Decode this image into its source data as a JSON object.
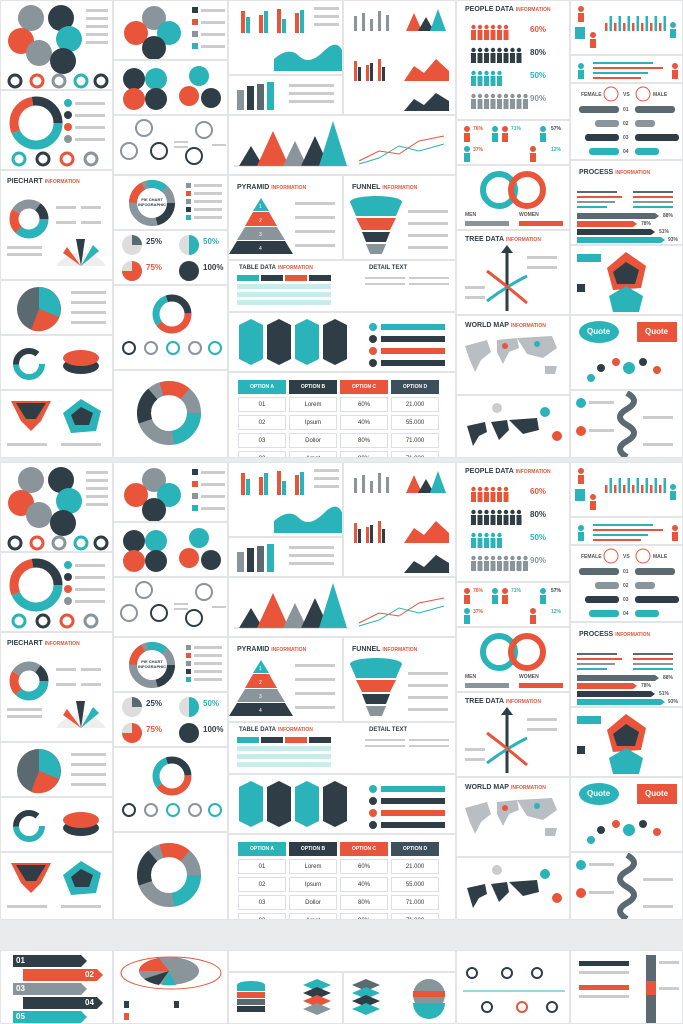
{
  "colors": {
    "teal": "#2ab3b8",
    "orange": "#e8553a",
    "dark": "#2f3e46",
    "gray": "#8a959b",
    "light": "#e6e8e9"
  },
  "titles": {
    "info": "INFORMATION",
    "people": "PEOPLE DATA",
    "piechart": "PIECHART",
    "pyramid": "PYRAMID",
    "funnel": "FUNNEL",
    "table_data": "TABLE DATA",
    "detail": "DETAIL TEXT",
    "tree": "TREE DATA",
    "world": "WORLD MAP",
    "process": "PROCESS",
    "pie_center": "PIE CHART INFOGRAPHIC",
    "quote": "Quote",
    "female": "FEMALE",
    "vs": "VS",
    "male": "MALE",
    "men": "MEN",
    "women": "WOMEN"
  },
  "people_pcts": [
    "60%",
    "80%",
    "50%",
    "90%"
  ],
  "people_small": [
    "76%",
    "71%",
    "57%",
    "37%",
    "12%"
  ],
  "pie_pcts": [
    "25%",
    "50%",
    "75%",
    "100%"
  ],
  "vs_steps": [
    "01",
    "02",
    "03",
    "04"
  ],
  "process_pcts": [
    "88%",
    "78%",
    "51%",
    "93%"
  ],
  "pyramid_steps": [
    "1",
    "2",
    "3",
    "4"
  ],
  "table": {
    "headers": [
      "OPTION A",
      "OPTION B",
      "OPTION C",
      "OPTION D"
    ],
    "rows": [
      [
        "01",
        "Lorem",
        "60%",
        "21.000"
      ],
      [
        "02",
        "Ipsum",
        "40%",
        "55.000"
      ],
      [
        "03",
        "Dollor",
        "80%",
        "71.000"
      ],
      [
        "03",
        "Amet",
        "80%",
        "71.000"
      ]
    ]
  },
  "bottom_steps": [
    "01",
    "02",
    "03",
    "04",
    "05"
  ]
}
